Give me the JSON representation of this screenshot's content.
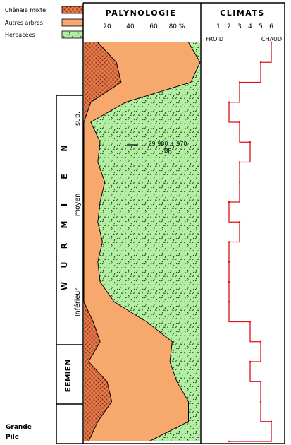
{
  "legend": {
    "items": [
      {
        "label": "Chênaie mixte",
        "pattern": "oak",
        "color": "#e8794a"
      },
      {
        "label": "Autres arbres",
        "pattern": "trees",
        "color": "#f7a86c"
      },
      {
        "label": "Herbacées",
        "pattern": "herbs",
        "color": "#b4f0a4"
      }
    ]
  },
  "headers": {
    "palynologie": "PALYNOLOGIE",
    "climats": "CLIMATS",
    "froid": "FROID",
    "chaud": "CHAUD"
  },
  "periods": {
    "wurmien_letters": [
      "W",
      "U",
      "R",
      "M",
      "I",
      "E",
      "N"
    ],
    "sup": "sup.",
    "moyen": "moyen",
    "inferieur": "Inférieur",
    "eemien": "EEMIEN"
  },
  "annotation": {
    "date": "29 980 ± 970",
    "bp": "BP"
  },
  "site": {
    "line1": "Grande",
    "line2": "Pile"
  },
  "chart_data": [
    {
      "type": "area",
      "title": "PALYNOLOGIE",
      "x_ticks": [
        "20",
        "40",
        "60",
        "80 %"
      ],
      "xlim": [
        0,
        100
      ],
      "y_positions": [
        0,
        5,
        10,
        15,
        20,
        25,
        30,
        35,
        40,
        45,
        50,
        55,
        60,
        65,
        70,
        75,
        80,
        85,
        90,
        95,
        100
      ],
      "series": [
        {
          "name": "Chênaie mixte",
          "values": [
            12,
            28,
            32,
            6,
            0,
            0,
            0,
            0,
            0,
            0,
            0,
            0,
            0,
            0,
            8,
            14,
            4,
            20,
            24,
            12,
            4
          ]
        },
        {
          "name": "Autres arbres",
          "values": [
            78,
            72,
            60,
            30,
            6,
            14,
            12,
            18,
            14,
            12,
            16,
            12,
            14,
            26,
            46,
            62,
            70,
            60,
            66,
            78,
            52
          ]
        },
        {
          "name": "Herbacées",
          "values": [
            10,
            0,
            8,
            64,
            94,
            86,
            88,
            82,
            86,
            88,
            84,
            88,
            86,
            74,
            46,
            24,
            26,
            20,
            10,
            10,
            44
          ]
        }
      ]
    },
    {
      "type": "line",
      "title": "CLIMATS",
      "x_ticks": [
        "1",
        "2",
        "3",
        "4",
        "5",
        "6"
      ],
      "xlim": [
        1,
        6
      ],
      "y_positions": [
        0,
        5,
        10,
        15,
        20,
        25,
        30,
        35,
        40,
        45,
        50,
        55,
        60,
        65,
        70,
        75,
        80,
        85,
        90,
        95,
        100
      ],
      "values": [
        6,
        5,
        3,
        2,
        3,
        4,
        3,
        3,
        2,
        3,
        2,
        2,
        2,
        2,
        4,
        5,
        4,
        5,
        5,
        6,
        2
      ]
    }
  ]
}
